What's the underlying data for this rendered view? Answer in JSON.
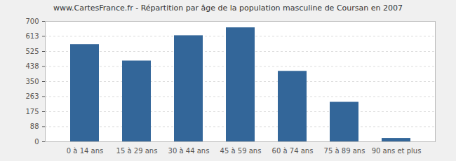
{
  "chart_data": {
    "type": "bar",
    "title": "www.CartesFrance.fr - Répartition par âge de la population masculine de Coursan en 2007",
    "categories": [
      "0 à 14 ans",
      "15 à 29 ans",
      "30 à 44 ans",
      "45 à 59 ans",
      "60 à 74 ans",
      "75 à 89 ans",
      "90 ans et plus"
    ],
    "values": [
      565,
      470,
      617,
      663,
      410,
      230,
      20
    ],
    "color": "#336699",
    "ylim": [
      0,
      700
    ],
    "yticks": [
      0,
      88,
      175,
      263,
      350,
      438,
      525,
      613,
      700
    ],
    "grid": true
  }
}
